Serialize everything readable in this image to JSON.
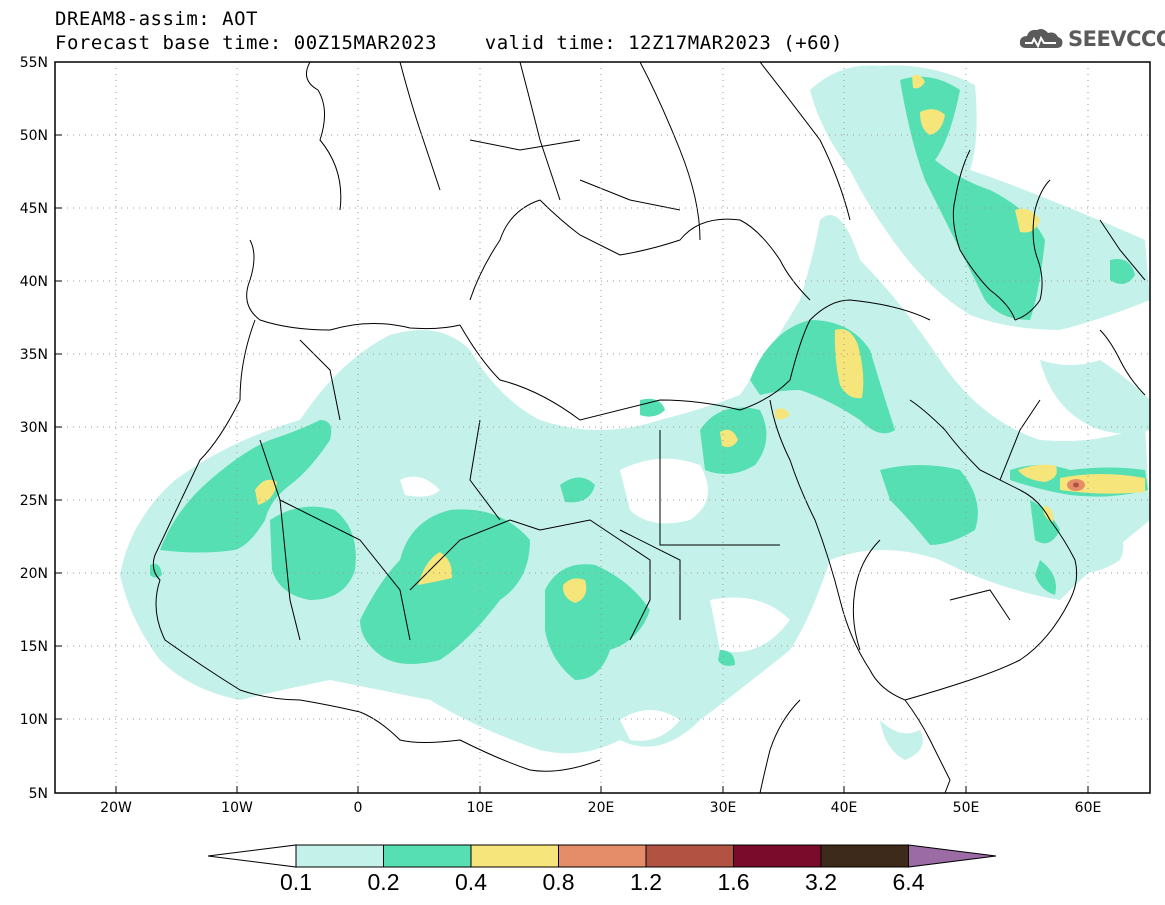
{
  "header": {
    "line1": "DREAM8-assim: AOT",
    "line2": "Forecast base time: 00Z15MAR2023    valid time: 12Z17MAR2023 (+60)",
    "logo_text": "SEEVCCC"
  },
  "map": {
    "lon_range": [
      -25,
      65
    ],
    "lat_range": [
      5,
      55
    ],
    "lat_ticks": [
      "55N",
      "50N",
      "45N",
      "40N",
      "35N",
      "30N",
      "25N",
      "20N",
      "15N",
      "10N",
      "5N"
    ],
    "lon_ticks": [
      "20W",
      "10W",
      "0",
      "10E",
      "20E",
      "30E",
      "40E",
      "50E",
      "60E"
    ],
    "gridlines": "dotted",
    "colors": {
      "background": "#ffffff",
      "coast": "#000000",
      "grid": "#888888"
    }
  },
  "colorbar": {
    "labels": [
      "0.1",
      "0.2",
      "0.4",
      "0.8",
      "1.2",
      "1.6",
      "3.2",
      "6.4"
    ],
    "colors": [
      "#c4f1ea",
      "#56dfb2",
      "#f5e57a",
      "#e58d68",
      "#b15242",
      "#7a0b2a",
      "#3d2a1a",
      "#9a6ba5"
    ],
    "under_color": "#ffffff"
  }
}
